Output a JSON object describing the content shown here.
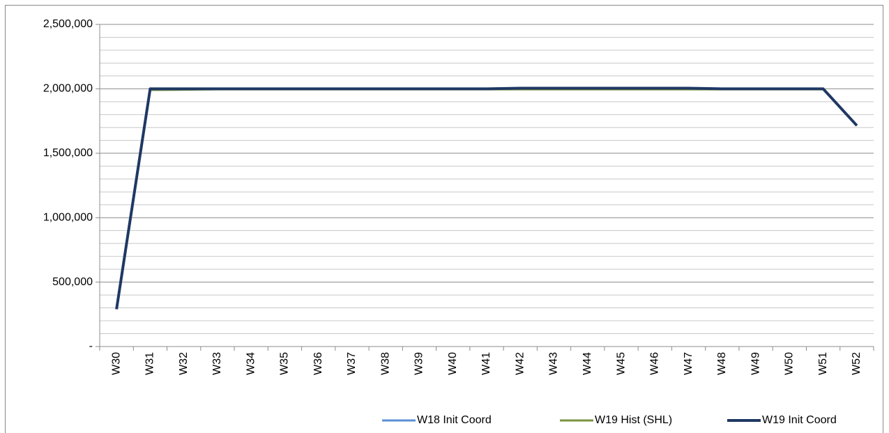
{
  "chart_data": {
    "type": "line",
    "categories": [
      "W30",
      "W31",
      "W32",
      "W33",
      "W34",
      "W35",
      "W36",
      "W37",
      "W38",
      "W39",
      "W40",
      "W41",
      "W42",
      "W43",
      "W44",
      "W45",
      "W46",
      "W47",
      "W48",
      "W49",
      "W50",
      "W51",
      "W52"
    ],
    "series": [
      {
        "name": "W18 Init Coord",
        "color": "#5b8fd6",
        "values": [
          290000,
          2000000,
          2000000,
          2000000,
          2000000,
          2000000,
          2000000,
          2000000,
          2000000,
          2000000,
          2000000,
          2000000,
          2005000,
          2005000,
          2005000,
          2005000,
          2005000,
          2005000,
          2000000,
          2000000,
          2000000,
          2000000,
          1715000
        ]
      },
      {
        "name": "W19 Hist (SHL)",
        "color": "#77933c",
        "values": [
          290000,
          1990000,
          1992000,
          1995000,
          1995000,
          1995000,
          1995000,
          1995000,
          1995000,
          1995000,
          1995000,
          1995000,
          1995000,
          1995000,
          1995000,
          1995000,
          1995000,
          1995000,
          1995000,
          1995000,
          1995000,
          1995000,
          1715000
        ]
      },
      {
        "name": "W19 Init Coord",
        "color": "#1f3864",
        "values": [
          290000,
          2000000,
          2000000,
          2000000,
          2000000,
          2000000,
          2000000,
          2000000,
          2000000,
          2000000,
          2000000,
          2000000,
          2005000,
          2005000,
          2005000,
          2005000,
          2005000,
          2005000,
          2000000,
          2000000,
          2000000,
          2000000,
          1715000
        ]
      }
    ],
    "ylim": [
      0,
      2500000
    ],
    "yticks": [
      {
        "value": 0,
        "label": "-"
      },
      {
        "value": 500000,
        "label": "500,000"
      },
      {
        "value": 1000000,
        "label": "1,000,000"
      },
      {
        "value": 1500000,
        "label": "1,500,000"
      },
      {
        "value": 2000000,
        "label": "2,000,000"
      },
      {
        "value": 2500000,
        "label": "2,500,000"
      }
    ],
    "yminor_ticks": [
      100000,
      200000,
      300000,
      400000,
      600000,
      700000,
      800000,
      900000,
      1100000,
      1200000,
      1300000,
      1400000,
      1600000,
      1700000,
      1800000,
      1900000,
      2100000,
      2200000,
      2300000,
      2400000
    ],
    "grid": true,
    "legend": "bottom"
  }
}
